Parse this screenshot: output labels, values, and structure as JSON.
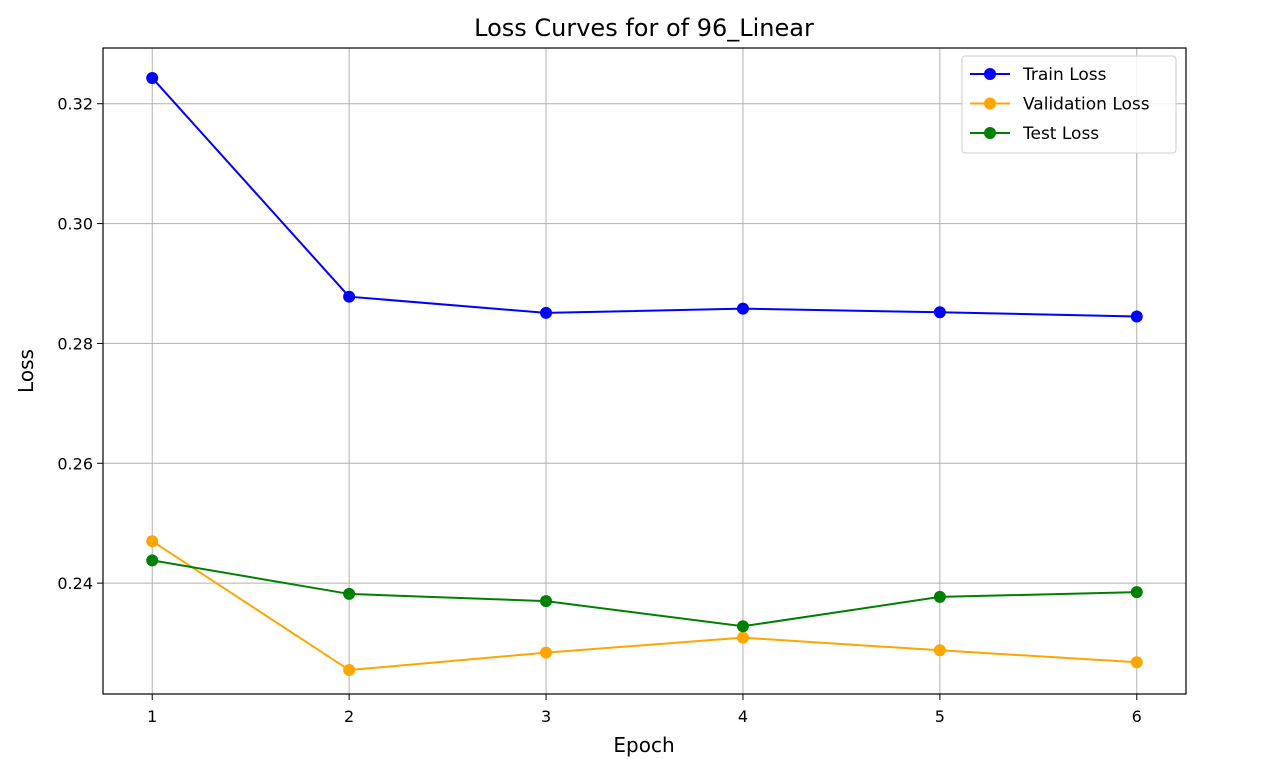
{
  "chart_data": {
    "type": "line",
    "title": "Loss Curves for of 96_Linear",
    "xlabel": "Epoch",
    "ylabel": "Loss",
    "x": [
      1,
      2,
      3,
      4,
      5,
      6
    ],
    "xlim": [
      0.75,
      6.25
    ],
    "ylim": [
      0.2215,
      0.3293
    ],
    "xticks": [
      1,
      2,
      3,
      4,
      5,
      6
    ],
    "yticks": [
      0.24,
      0.26,
      0.28,
      0.3,
      0.32
    ],
    "ytick_labels": [
      "0.24",
      "0.26",
      "0.28",
      "0.30",
      "0.32"
    ],
    "grid": true,
    "legend_position": "top-right",
    "series": [
      {
        "name": "Train Loss",
        "color": "#0000ff",
        "marker": "circle",
        "values": [
          0.3243,
          0.2878,
          0.2851,
          0.2858,
          0.2852,
          0.2845
        ]
      },
      {
        "name": "Validation Loss",
        "color": "#ffa500",
        "marker": "circle",
        "values": [
          0.247,
          0.2255,
          0.2284,
          0.2309,
          0.2288,
          0.2268
        ]
      },
      {
        "name": "Test Loss",
        "color": "#008000",
        "marker": "circle",
        "values": [
          0.2438,
          0.2382,
          0.237,
          0.2328,
          0.2377,
          0.2385
        ]
      }
    ]
  }
}
